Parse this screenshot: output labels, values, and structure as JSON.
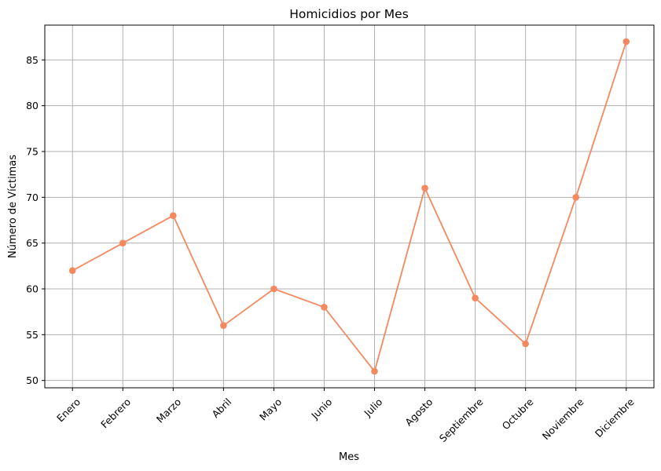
{
  "chart_data": {
    "type": "line",
    "title": "Homicidios por Mes",
    "xlabel": "Mes",
    "ylabel": "Número de Víctimas",
    "categories": [
      "Enero",
      "Febrero",
      "Marzo",
      "Abril",
      "Mayo",
      "Junio",
      "Julio",
      "Agosto",
      "Septiembre",
      "Octubre",
      "Noviembre",
      "Diciembre"
    ],
    "series": [
      {
        "values": [
          62,
          65,
          68,
          56,
          60,
          58,
          51,
          71,
          59,
          54,
          70,
          87
        ]
      }
    ],
    "ylim": [
      49.2,
      88.8
    ],
    "yticks": [
      50,
      55,
      60,
      65,
      70,
      75,
      80,
      85
    ],
    "grid": true,
    "line_color": "#f4895f",
    "grid_color": "#b0b0b0",
    "marker": "circle",
    "x_tick_rotation_deg": 45
  }
}
